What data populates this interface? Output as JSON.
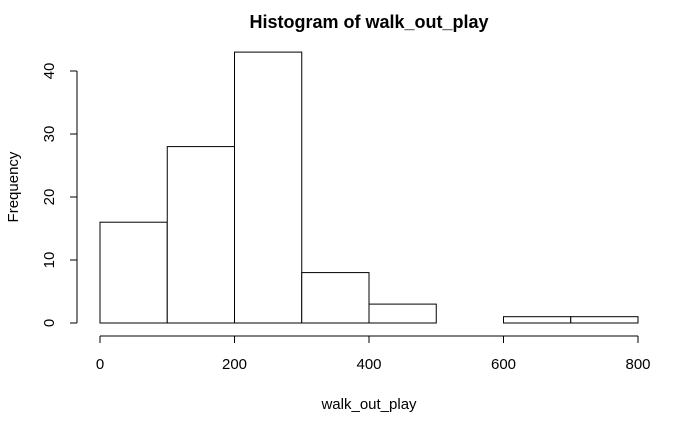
{
  "chart_data": {
    "type": "bar",
    "title": "Histogram of walk_out_play",
    "xlabel": "walk_out_play",
    "ylabel": "Frequency",
    "bins": [
      {
        "start": 0,
        "end": 100,
        "count": 16
      },
      {
        "start": 100,
        "end": 200,
        "count": 28
      },
      {
        "start": 200,
        "end": 300,
        "count": 43
      },
      {
        "start": 300,
        "end": 400,
        "count": 8
      },
      {
        "start": 400,
        "end": 500,
        "count": 3
      },
      {
        "start": 500,
        "end": 600,
        "count": 0
      },
      {
        "start": 600,
        "end": 700,
        "count": 1
      },
      {
        "start": 700,
        "end": 800,
        "count": 1
      }
    ],
    "xlim": [
      0,
      800
    ],
    "ylim": [
      0,
      43
    ],
    "x_ticks": [
      0,
      200,
      400,
      600,
      800
    ],
    "y_ticks": [
      0,
      10,
      20,
      30,
      40
    ],
    "grid": false,
    "bar_fill": "#ffffff",
    "bar_stroke": "#000000"
  }
}
